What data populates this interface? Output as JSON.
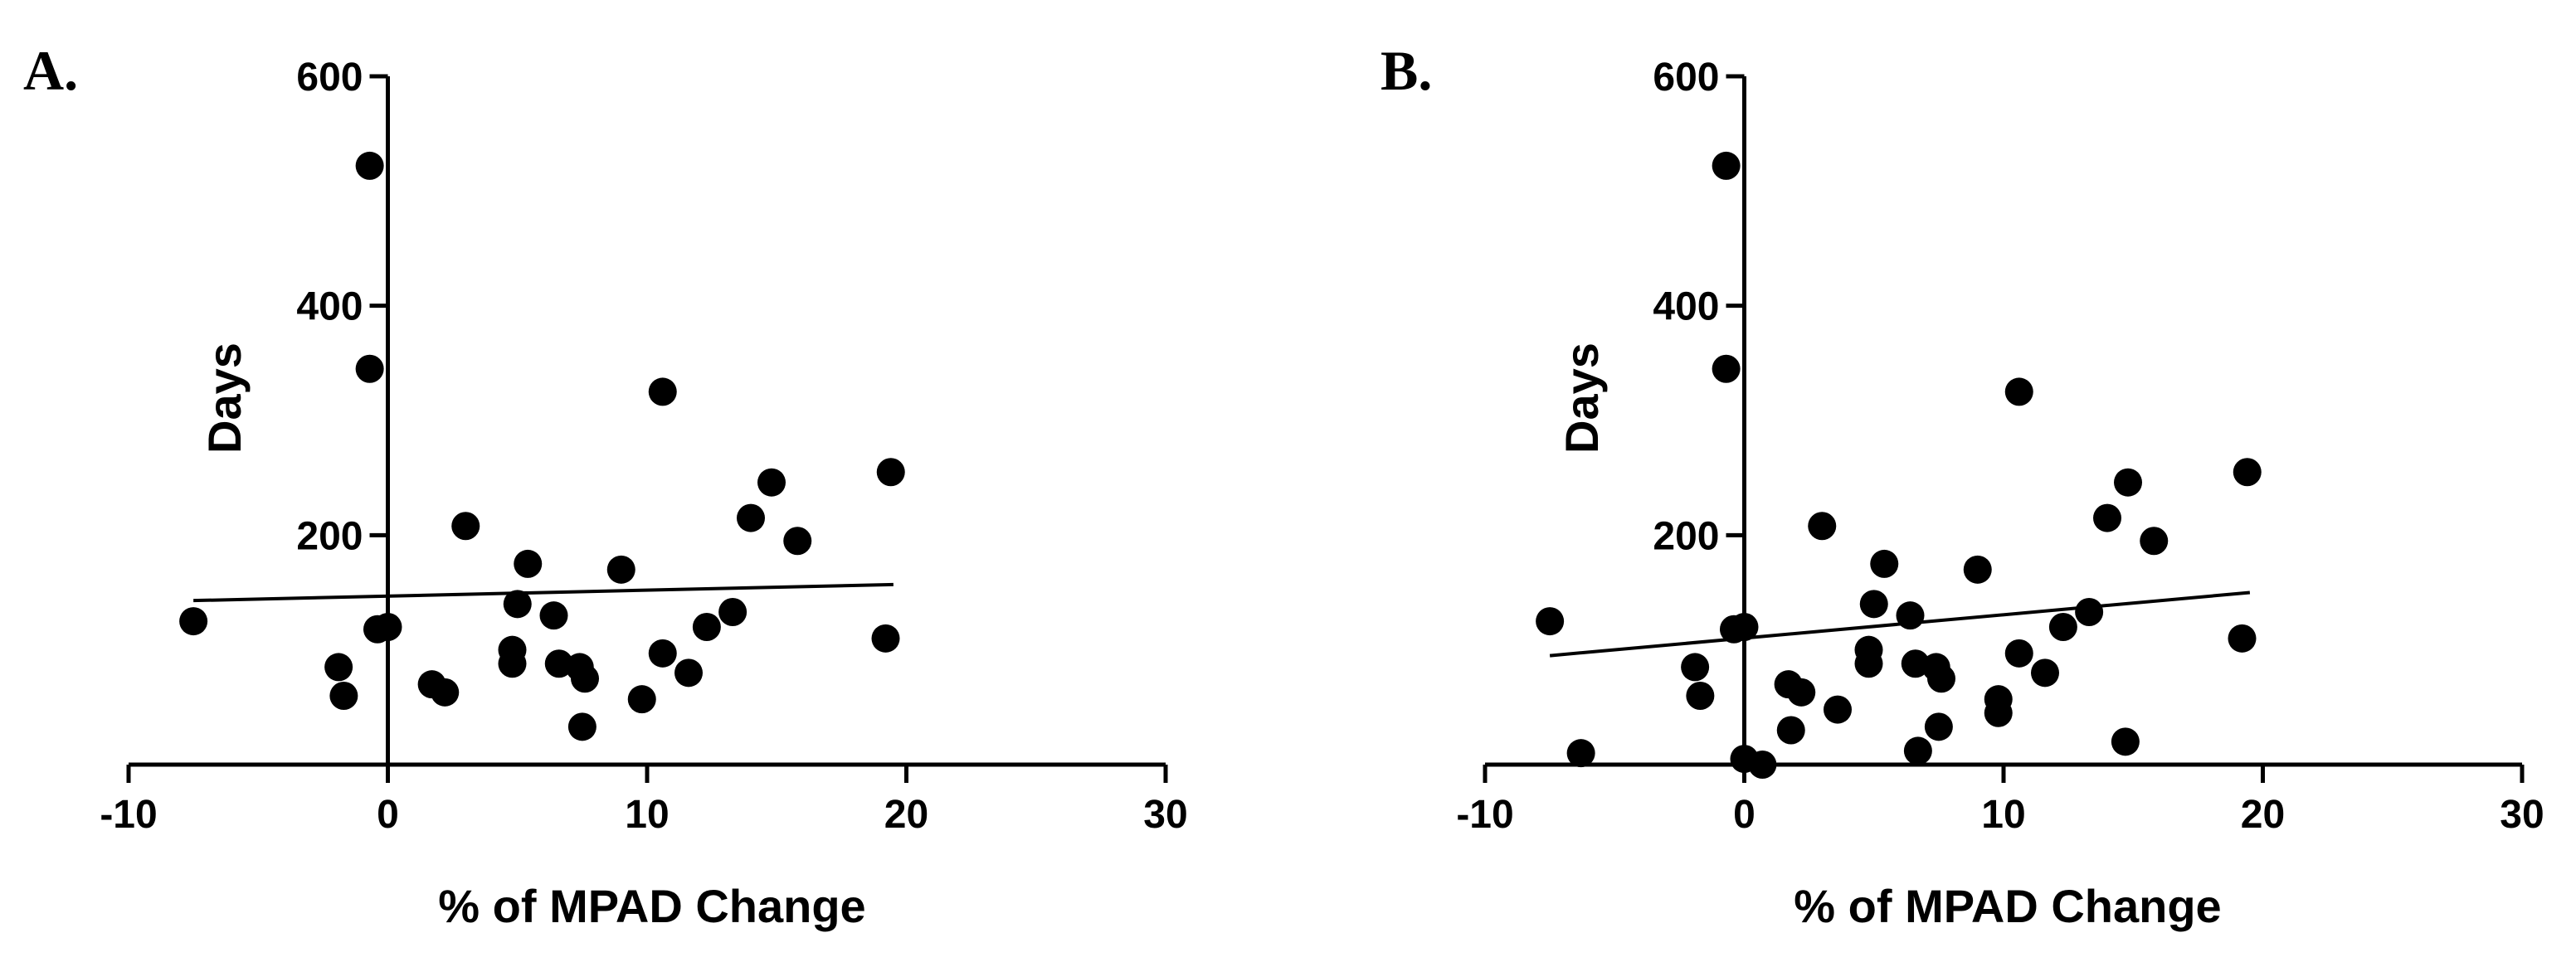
{
  "chart_data": [
    {
      "panel_label": "A.",
      "type": "scatter",
      "xlabel": "% of MPAD Change",
      "ylabel": "Days",
      "xlim": [
        -10,
        30
      ],
      "ylim": [
        0,
        600
      ],
      "xticks": [
        -10,
        0,
        10,
        20,
        30
      ],
      "yticks": [
        200,
        400,
        600
      ],
      "xtick_labels": [
        "-10",
        "0",
        "10",
        "20",
        "30"
      ],
      "ytick_labels": [
        "200",
        "400",
        "600"
      ],
      "points": [
        {
          "x": -7.5,
          "y": 125
        },
        {
          "x": -0.7,
          "y": 522
        },
        {
          "x": -0.7,
          "y": 345
        },
        {
          "x": -0.4,
          "y": 118
        },
        {
          "x": 0.0,
          "y": 120
        },
        {
          "x": -1.9,
          "y": 85
        },
        {
          "x": -1.7,
          "y": 60
        },
        {
          "x": 1.7,
          "y": 70
        },
        {
          "x": 2.2,
          "y": 63
        },
        {
          "x": 3.0,
          "y": 208
        },
        {
          "x": 4.8,
          "y": 100
        },
        {
          "x": 4.8,
          "y": 88
        },
        {
          "x": 5.0,
          "y": 140
        },
        {
          "x": 5.4,
          "y": 175
        },
        {
          "x": 6.4,
          "y": 130
        },
        {
          "x": 6.6,
          "y": 88
        },
        {
          "x": 7.4,
          "y": 85
        },
        {
          "x": 7.6,
          "y": 75
        },
        {
          "x": 7.5,
          "y": 33
        },
        {
          "x": 9.0,
          "y": 170
        },
        {
          "x": 9.8,
          "y": 57
        },
        {
          "x": 10.6,
          "y": 325
        },
        {
          "x": 10.6,
          "y": 97
        },
        {
          "x": 11.6,
          "y": 80
        },
        {
          "x": 12.3,
          "y": 120
        },
        {
          "x": 13.3,
          "y": 133
        },
        {
          "x": 14.0,
          "y": 215
        },
        {
          "x": 14.8,
          "y": 246
        },
        {
          "x": 15.8,
          "y": 195
        },
        {
          "x": 19.2,
          "y": 110
        },
        {
          "x": 19.4,
          "y": 255
        }
      ],
      "trendline": {
        "x": [
          -7.5,
          19.5
        ],
        "y": [
          143,
          157
        ]
      }
    },
    {
      "panel_label": "B.",
      "type": "scatter",
      "xlabel": "% of MPAD Change",
      "ylabel": "Days",
      "xlim": [
        -10,
        30
      ],
      "ylim": [
        0,
        600
      ],
      "xticks": [
        -10,
        0,
        10,
        20,
        30
      ],
      "yticks": [
        200,
        400,
        600
      ],
      "xtick_labels": [
        "-10",
        "0",
        "10",
        "20",
        "30"
      ],
      "ytick_labels": [
        "200",
        "400",
        "600"
      ],
      "points": [
        {
          "x": -7.5,
          "y": 125
        },
        {
          "x": -0.7,
          "y": 522
        },
        {
          "x": -0.7,
          "y": 345
        },
        {
          "x": -0.4,
          "y": 118
        },
        {
          "x": 0.0,
          "y": 120
        },
        {
          "x": -1.9,
          "y": 85
        },
        {
          "x": -1.7,
          "y": 60
        },
        {
          "x": -6.3,
          "y": 10
        },
        {
          "x": 0.0,
          "y": 5
        },
        {
          "x": 0.7,
          "y": 0
        },
        {
          "x": 1.7,
          "y": 70
        },
        {
          "x": 1.8,
          "y": 30
        },
        {
          "x": 2.2,
          "y": 63
        },
        {
          "x": 3.0,
          "y": 208
        },
        {
          "x": 3.6,
          "y": 48
        },
        {
          "x": 4.8,
          "y": 100
        },
        {
          "x": 4.8,
          "y": 88
        },
        {
          "x": 5.0,
          "y": 140
        },
        {
          "x": 5.4,
          "y": 175
        },
        {
          "x": 6.4,
          "y": 130
        },
        {
          "x": 6.6,
          "y": 88
        },
        {
          "x": 6.7,
          "y": 12
        },
        {
          "x": 7.4,
          "y": 85
        },
        {
          "x": 7.6,
          "y": 75
        },
        {
          "x": 7.5,
          "y": 33
        },
        {
          "x": 9.0,
          "y": 170
        },
        {
          "x": 9.8,
          "y": 57
        },
        {
          "x": 9.8,
          "y": 45
        },
        {
          "x": 10.6,
          "y": 325
        },
        {
          "x": 10.6,
          "y": 97
        },
        {
          "x": 11.6,
          "y": 80
        },
        {
          "x": 12.3,
          "y": 120
        },
        {
          "x": 13.3,
          "y": 133
        },
        {
          "x": 14.0,
          "y": 215
        },
        {
          "x": 14.7,
          "y": 20
        },
        {
          "x": 14.8,
          "y": 246
        },
        {
          "x": 15.8,
          "y": 195
        },
        {
          "x": 19.2,
          "y": 110
        },
        {
          "x": 19.4,
          "y": 255
        }
      ],
      "trendline": {
        "x": [
          -7.5,
          19.5
        ],
        "y": [
          95,
          150
        ]
      }
    }
  ]
}
